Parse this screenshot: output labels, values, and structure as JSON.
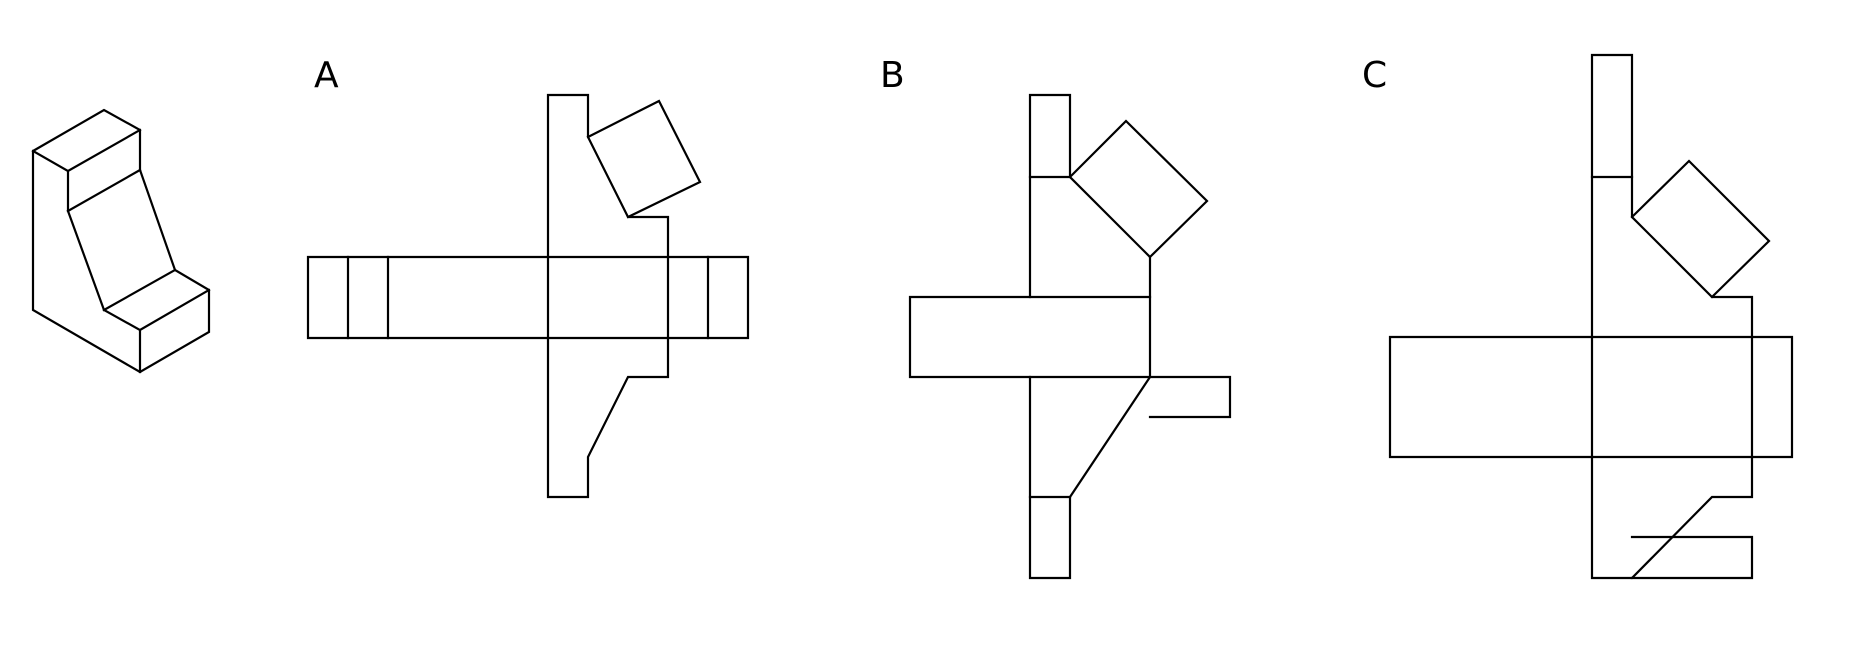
{
  "options": [
    {
      "label": "A"
    },
    {
      "label": "B"
    },
    {
      "label": "C"
    }
  ],
  "colors": {
    "stroke": "#000000",
    "background": "#ffffff"
  }
}
